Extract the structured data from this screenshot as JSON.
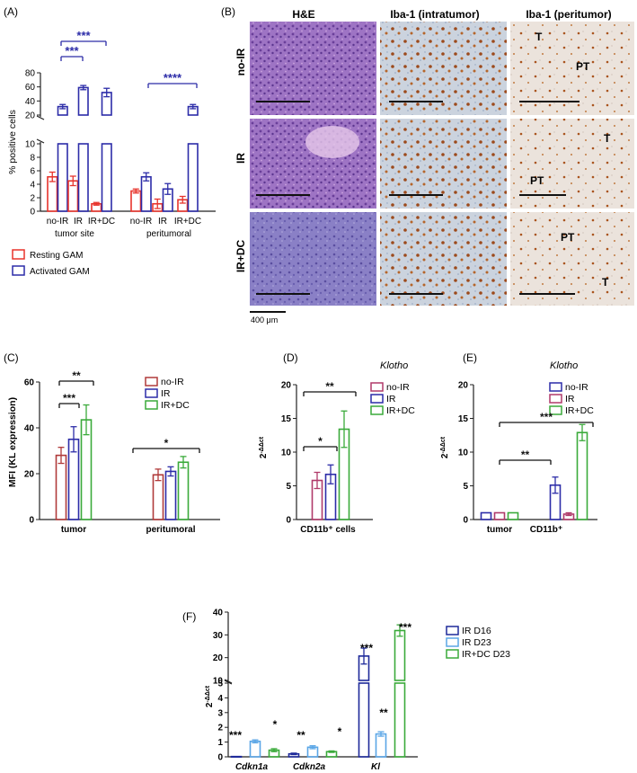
{
  "chart_data": [
    {
      "id": "A",
      "type": "bar",
      "panel_label": "(A)",
      "ylabel": "% positive cells",
      "yaxis_broken": true,
      "ylim_lower": [
        0,
        10
      ],
      "ylim_upper": [
        20,
        80
      ],
      "yticks_lower": [
        "0",
        "2",
        "4",
        "6",
        "8",
        "10"
      ],
      "yticks_upper": [
        "20",
        "40",
        "60",
        "80"
      ],
      "groups": [
        "tumor site",
        "peritumoral"
      ],
      "categories": [
        "no-IR",
        "IR",
        "IR+DC",
        "no-IR",
        "IR",
        "IR+DC"
      ],
      "series": [
        {
          "name": "Resting GAM",
          "color": "#e8342c",
          "values": [
            5.1,
            4.5,
            1.1,
            3.0,
            1.1,
            1.7
          ],
          "errors": [
            0.7,
            0.7,
            0.2,
            0.3,
            0.7,
            0.5
          ]
        },
        {
          "name": "Activated GAM",
          "color": "#2c2ca8",
          "values": [
            32,
            59,
            52,
            5.1,
            3.3,
            32
          ],
          "errors": [
            3,
            3,
            6,
            0.6,
            0.8,
            3
          ]
        }
      ],
      "annotations": [
        "***",
        "***",
        "****"
      ]
    },
    {
      "id": "C",
      "type": "bar",
      "panel_label": "(C)",
      "ylabel": "MFI (KL expression)",
      "ylim": [
        0,
        60
      ],
      "yticks": [
        "0",
        "20",
        "40",
        "60"
      ],
      "categories": [
        "tumor",
        "peritumoral"
      ],
      "series": [
        {
          "name": "no-IR",
          "color": "#b03a3a",
          "values": [
            28,
            19.5
          ],
          "errors": [
            3.5,
            2.5
          ]
        },
        {
          "name": "IR",
          "color": "#2c2ca8",
          "values": [
            35,
            21
          ],
          "errors": [
            5.5,
            2
          ]
        },
        {
          "name": "IR+DC",
          "color": "#3aaa3a",
          "values": [
            43.5,
            25
          ],
          "errors": [
            6.5,
            2.5
          ]
        }
      ],
      "annotations": [
        "***",
        "**",
        "*"
      ]
    },
    {
      "id": "D",
      "type": "bar",
      "panel_label": "(D)",
      "legend_title": "Klotho",
      "ylabel": "2^-ΔΔct",
      "ylim": [
        0,
        20
      ],
      "yticks": [
        "0",
        "5",
        "10",
        "15",
        "20"
      ],
      "categories": [
        "CD11b⁺ cells"
      ],
      "series": [
        {
          "name": "no-IR",
          "color": "#b03a6a",
          "values": [
            5.8
          ],
          "errors": [
            1.2
          ]
        },
        {
          "name": "IR",
          "color": "#2c2ca8",
          "values": [
            6.7
          ],
          "errors": [
            1.4
          ]
        },
        {
          "name": "IR+DC",
          "color": "#3aaa3a",
          "values": [
            13.4
          ],
          "errors": [
            2.7
          ]
        }
      ],
      "annotations": [
        "**",
        "*"
      ]
    },
    {
      "id": "E",
      "type": "bar",
      "panel_label": "(E)",
      "legend_title": "Klotho",
      "ylabel": "2^-ΔΔct",
      "ylim": [
        0,
        20
      ],
      "yticks": [
        "0",
        "5",
        "10",
        "15",
        "20"
      ],
      "categories": [
        "tumor",
        "CD11b⁺"
      ],
      "series": [
        {
          "name": "no-IR",
          "color": "#2c2ca8",
          "values": [
            1.0,
            5.1
          ],
          "errors": [
            0,
            1.2
          ]
        },
        {
          "name": "IR",
          "color": "#b03a6a",
          "values": [
            1.0,
            0.8
          ],
          "errors": [
            0,
            0.2
          ]
        },
        {
          "name": "IR+DC",
          "color": "#3aaa3a",
          "values": [
            1.0,
            12.9
          ],
          "errors": [
            0,
            1.2
          ]
        }
      ],
      "annotations": [
        "***",
        "**"
      ]
    },
    {
      "id": "F",
      "type": "bar",
      "panel_label": "(F)",
      "ylabel": "2^-ΔΔct",
      "yaxis_broken": true,
      "ylim_lower": [
        0,
        5
      ],
      "ylim_upper": [
        10,
        40
      ],
      "yticks_lower": [
        "0",
        "1",
        "2",
        "3",
        "4",
        "5"
      ],
      "yticks_upper": [
        "10",
        "20",
        "30",
        "40"
      ],
      "categories": [
        "Cdkn1a",
        "Cdkn2a",
        "Kl"
      ],
      "series": [
        {
          "name": "IR D16",
          "color": "#1e2a9a",
          "values": [
            0.02,
            0.2,
            20.7
          ],
          "errors": [
            0,
            0.05,
            3.5
          ]
        },
        {
          "name": "IR D23",
          "color": "#5aa6e6",
          "values": [
            1.05,
            0.65,
            1.55
          ],
          "errors": [
            0.1,
            0.1,
            0.15
          ]
        },
        {
          "name": "IR+DC D23",
          "color": "#3aaa3a",
          "values": [
            0.45,
            0.35,
            31.9
          ],
          "errors": [
            0.1,
            0.05,
            2.5
          ]
        }
      ],
      "annotations": [
        "***",
        "*",
        "**",
        "*",
        "***",
        "**",
        "***"
      ]
    }
  ],
  "panel_b": {
    "label": "(B)",
    "col_headers": [
      "H&E",
      "Iba-1 (intratumor)",
      "Iba-1 (peritumor)"
    ],
    "row_labels": [
      "no-IR",
      "IR",
      "IR+DC"
    ],
    "region_labels": [
      [
        "T",
        "PT"
      ],
      [
        "T",
        "PT"
      ],
      [
        "PT",
        "T"
      ]
    ],
    "scale_label": "400 μm",
    "colors": {
      "he": "#9a6bc0",
      "iba_intra": "#cfcfd8",
      "iba_peri": "#e8e0dc",
      "stain": "#a04a1a"
    }
  }
}
